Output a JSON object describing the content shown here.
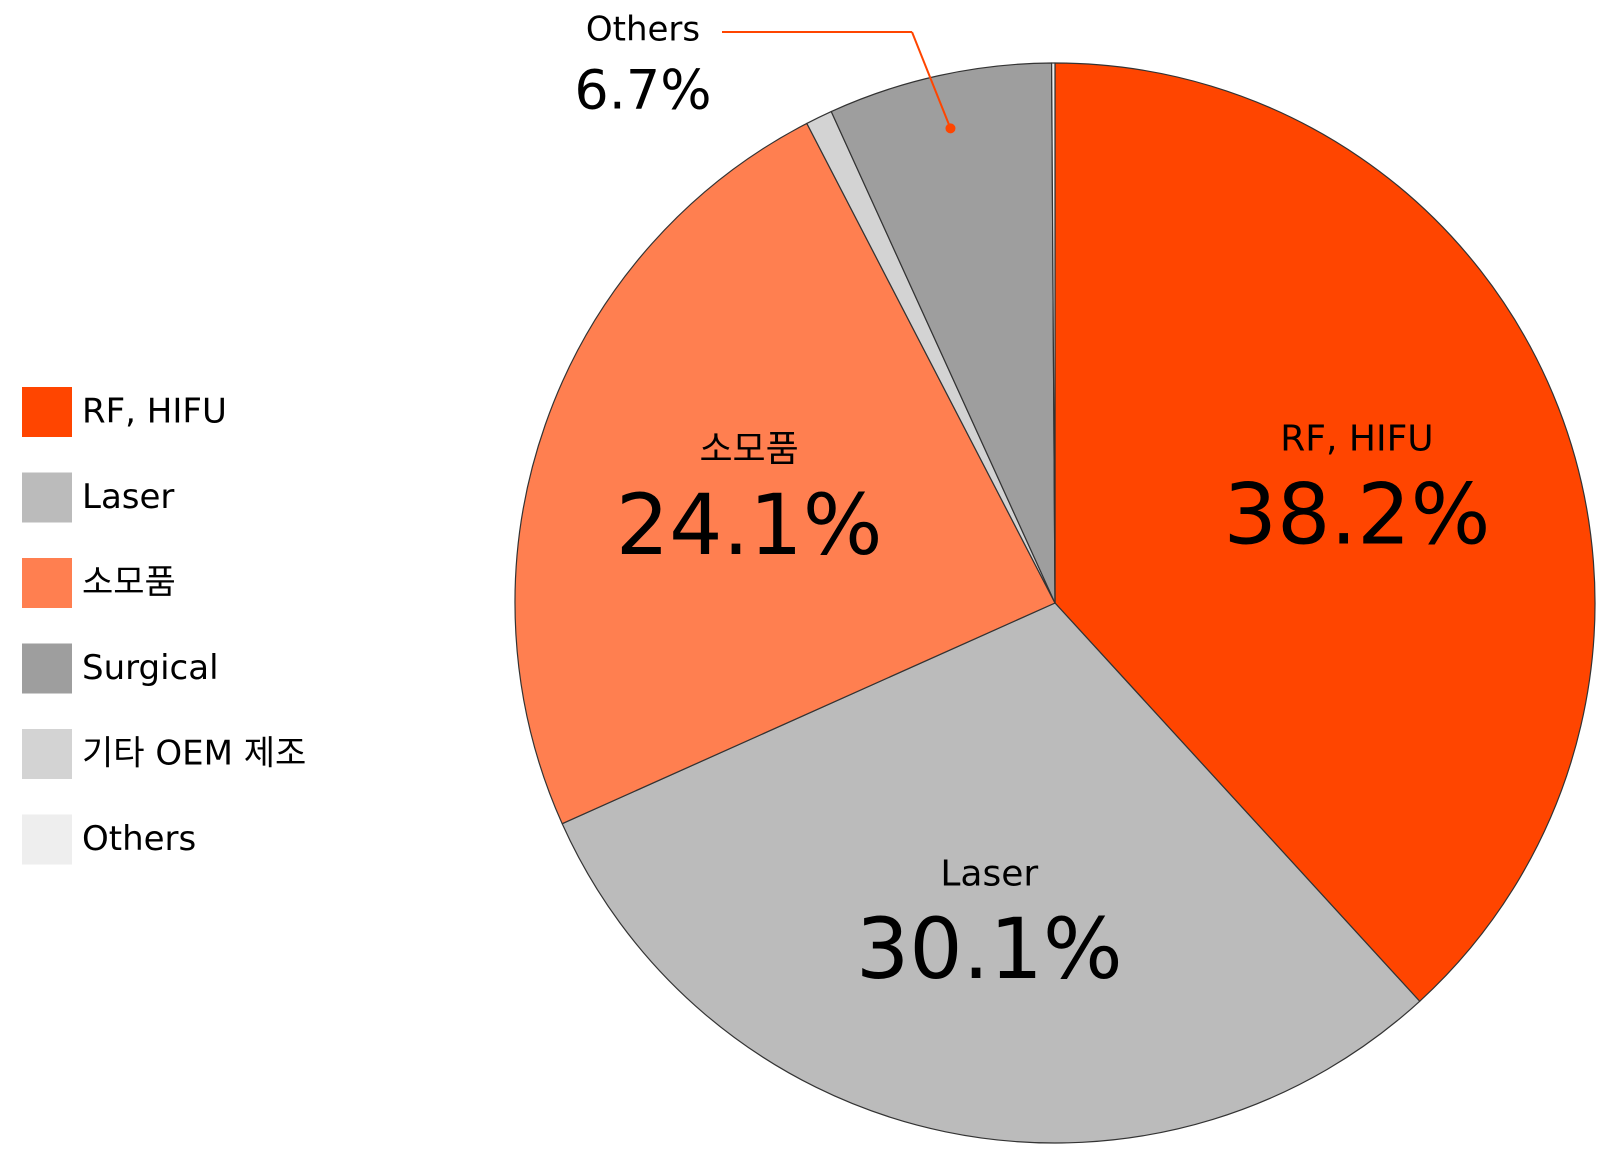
{
  "chart_data": {
    "type": "pie",
    "values": [
      38.2,
      30.1,
      24.1,
      0.8,
      6.7,
      0.1
    ],
    "value_labels": [
      "38.2%",
      "30.1%",
      "24.1%",
      null,
      "6.7%",
      null
    ],
    "slice_labels": [
      "RF, HIFU",
      "Laser",
      "소모품",
      null,
      "Others",
      null
    ],
    "colors": [
      "#ff4500",
      "#bbbbbb",
      "#ff7f50",
      "#d3d3d3",
      "#9e9e9e",
      "#eeeeee"
    ],
    "legend": [
      {
        "name": "RF, HIFU",
        "color": "#ff4500"
      },
      {
        "name": "Laser",
        "color": "#bbbbbb"
      },
      {
        "name": "소모품",
        "color": "#ff7f50"
      },
      {
        "name": "Surgical",
        "color": "#9e9e9e"
      },
      {
        "name": "기타 OEM 제조",
        "color": "#d3d3d3"
      },
      {
        "name": "Others",
        "color": "#eeeeee"
      }
    ]
  }
}
